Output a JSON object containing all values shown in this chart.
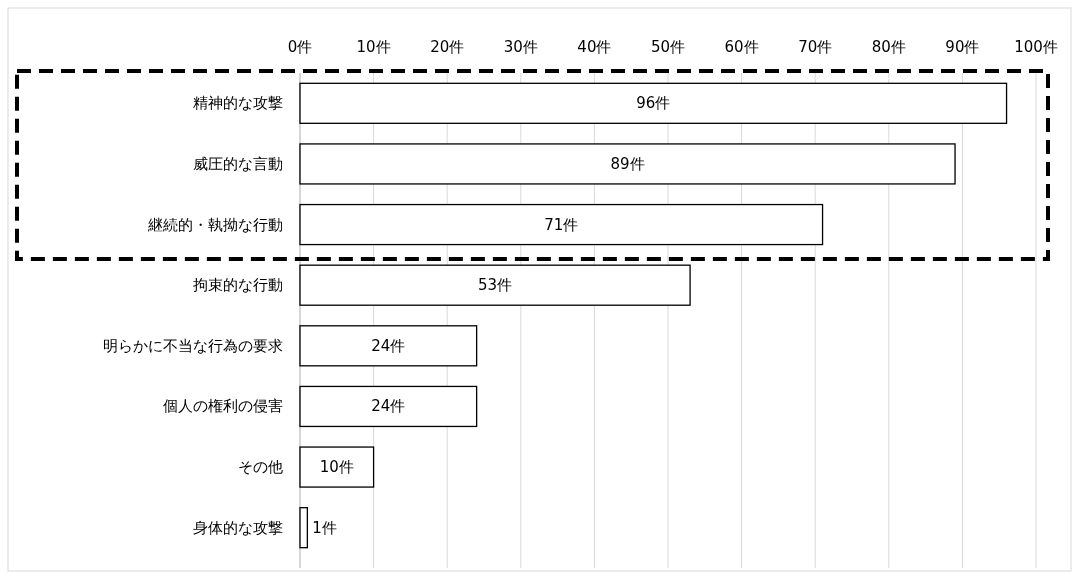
{
  "chart_data": {
    "type": "bar",
    "orientation": "horizontal",
    "categories": [
      "精神的な攻撃",
      "威圧的な言動",
      "継続的・執拗な行動",
      "拘束的な行動",
      "明らかに不当な行為の要求",
      "個人の権利の侵害",
      "その他",
      "身体的な攻撃"
    ],
    "values": [
      96,
      89,
      71,
      53,
      24,
      24,
      10,
      1
    ],
    "value_labels": [
      "96件",
      "89件",
      "71件",
      "53件",
      "24件",
      "24件",
      "10件",
      "1件"
    ],
    "color": "#ffffff",
    "xlim": [
      0,
      100
    ],
    "xticks": [
      {
        "value": 0,
        "label": "0件"
      },
      {
        "value": 10,
        "label": "10件"
      },
      {
        "value": 20,
        "label": "20件"
      },
      {
        "value": 30,
        "label": "30件"
      },
      {
        "value": 40,
        "label": "40件"
      },
      {
        "value": 50,
        "label": "50件"
      },
      {
        "value": 60,
        "label": "60件"
      },
      {
        "value": 70,
        "label": "70件"
      },
      {
        "value": 80,
        "label": "80件"
      },
      {
        "value": 90,
        "label": "90件"
      },
      {
        "value": 100,
        "label": "100件"
      }
    ],
    "grid": "x"
  }
}
